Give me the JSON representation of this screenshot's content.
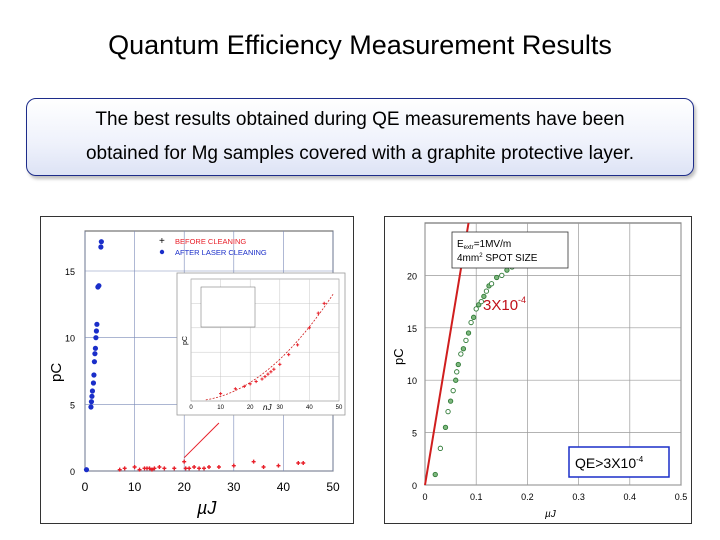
{
  "title": "Quantum Efficiency Measurement Results",
  "callout": {
    "line1": "The best results obtained during QE measurements have been",
    "line2": "obtained for Mg samples covered with a graphite protective layer."
  },
  "colors": {
    "before": "#e8202a",
    "after": "#1a2ec9",
    "fit_red": "#d01e1e",
    "green": "#2f7a36",
    "callout_border": "#1d2c8a"
  },
  "chart_data": [
    {
      "type": "scatter",
      "xlabel": "µJ",
      "ylabel": "pC",
      "xlim": [
        0,
        50
      ],
      "ylim": [
        0,
        18
      ],
      "xticks": [
        "0",
        "10",
        "20",
        "30",
        "40",
        "50"
      ],
      "yticks": [
        "0",
        "5",
        "10",
        "15"
      ],
      "grid": true,
      "legend": [
        "BEFORE CLEANING",
        "AFTER LASER CLEANING"
      ],
      "series": [
        {
          "name": "BEFORE CLEANING",
          "points": [
            [
              7,
              0.1
            ],
            [
              8,
              0.2
            ],
            [
              10,
              0.3
            ],
            [
              11,
              0.1
            ],
            [
              12,
              0.2
            ],
            [
              12.5,
              0.2
            ],
            [
              13,
              0.2
            ],
            [
              13.5,
              0.1
            ],
            [
              14,
              0.2
            ],
            [
              15,
              0.3
            ],
            [
              16,
              0.2
            ],
            [
              18,
              0.2
            ],
            [
              20,
              0.7
            ],
            [
              20.3,
              0.2
            ],
            [
              21,
              0.2
            ],
            [
              22,
              0.3
            ],
            [
              23,
              0.2
            ],
            [
              24,
              0.2
            ],
            [
              25,
              0.3
            ],
            [
              27,
              0.3
            ],
            [
              30,
              0.4
            ],
            [
              34,
              0.7
            ],
            [
              36,
              0.3
            ],
            [
              39,
              0.4
            ],
            [
              43,
              0.6
            ],
            [
              44,
              0.6
            ]
          ]
        },
        {
          "name": "AFTER LASER CLEANING",
          "points": [
            [
              0.3,
              0.1
            ],
            [
              1.2,
              4.8
            ],
            [
              1.3,
              5.2
            ],
            [
              1.4,
              5.6
            ],
            [
              1.5,
              6.0
            ],
            [
              1.7,
              6.6
            ],
            [
              1.8,
              7.2
            ],
            [
              1.9,
              8.2
            ],
            [
              2.0,
              8.8
            ],
            [
              2.1,
              9.2
            ],
            [
              2.2,
              10.0
            ],
            [
              2.3,
              10.5
            ],
            [
              2.4,
              11.0
            ],
            [
              2.6,
              13.8
            ],
            [
              2.8,
              13.9
            ],
            [
              3.2,
              16.8
            ],
            [
              3.3,
              17.2
            ]
          ]
        }
      ],
      "inset": {
        "type": "scatter",
        "xlabel": "nJ",
        "ylabel": "pC",
        "xticks": [
          "0",
          "10",
          "20",
          "30",
          "40",
          "50"
        ],
        "points": [
          [
            10,
            0.3
          ],
          [
            15,
            0.5
          ],
          [
            18,
            0.6
          ],
          [
            20,
            0.7
          ],
          [
            22,
            0.8
          ],
          [
            24,
            0.9
          ],
          [
            25,
            1.0
          ],
          [
            26,
            1.1
          ],
          [
            27,
            1.2
          ],
          [
            28,
            1.3
          ],
          [
            30,
            1.5
          ],
          [
            33,
            1.9
          ],
          [
            36,
            2.3
          ],
          [
            40,
            3.0
          ],
          [
            43,
            3.6
          ],
          [
            45,
            4.0
          ]
        ]
      }
    },
    {
      "type": "scatter",
      "xlabel": "µJ",
      "ylabel": "pC",
      "xlim": [
        0,
        0.5
      ],
      "ylim": [
        0,
        25
      ],
      "xticks": [
        "0",
        "0.1",
        "0.2",
        "0.3",
        "0.4",
        "0.5"
      ],
      "yticks": [
        "0",
        "5",
        "10",
        "15",
        "20"
      ],
      "grid": true,
      "annotations": {
        "box_line1_main": "E",
        "box_line1_sub": "extr",
        "box_line1_rest": "=1MV/m",
        "box_line2_main": "4mm",
        "box_line2_sup": "2",
        "box_line2_rest": " SPOT SIZE",
        "fit_label_main": "3X10",
        "fit_label_sup": "-4",
        "qe_label_main": "QE>3X10",
        "qe_label_sup": "-4"
      },
      "fit_line": [
        [
          0,
          0
        ],
        [
          0.085,
          25
        ]
      ],
      "series": [
        {
          "name": "",
          "points": [
            [
              0.02,
              1.0
            ],
            [
              0.03,
              3.5
            ],
            [
              0.04,
              5.5
            ],
            [
              0.045,
              7.0
            ],
            [
              0.05,
              8.0
            ],
            [
              0.055,
              9.0
            ],
            [
              0.06,
              10.0
            ],
            [
              0.062,
              10.8
            ],
            [
              0.065,
              11.5
            ],
            [
              0.07,
              12.5
            ],
            [
              0.075,
              13.0
            ],
            [
              0.08,
              13.8
            ],
            [
              0.085,
              14.5
            ],
            [
              0.09,
              15.5
            ],
            [
              0.095,
              16.0
            ],
            [
              0.1,
              16.8
            ],
            [
              0.105,
              17.2
            ],
            [
              0.11,
              17.5
            ],
            [
              0.115,
              18.0
            ],
            [
              0.12,
              18.5
            ],
            [
              0.125,
              19.0
            ],
            [
              0.13,
              19.2
            ],
            [
              0.14,
              19.8
            ],
            [
              0.15,
              20.0
            ],
            [
              0.16,
              20.5
            ],
            [
              0.17,
              20.8
            ],
            [
              0.18,
              21.0
            ],
            [
              0.19,
              21.5
            ],
            [
              0.2,
              21.8
            ],
            [
              0.21,
              22.0
            ],
            [
              0.22,
              22.3
            ],
            [
              0.23,
              22.5
            ],
            [
              0.24,
              22.8
            ],
            [
              0.25,
              23.0
            ]
          ]
        }
      ]
    }
  ]
}
